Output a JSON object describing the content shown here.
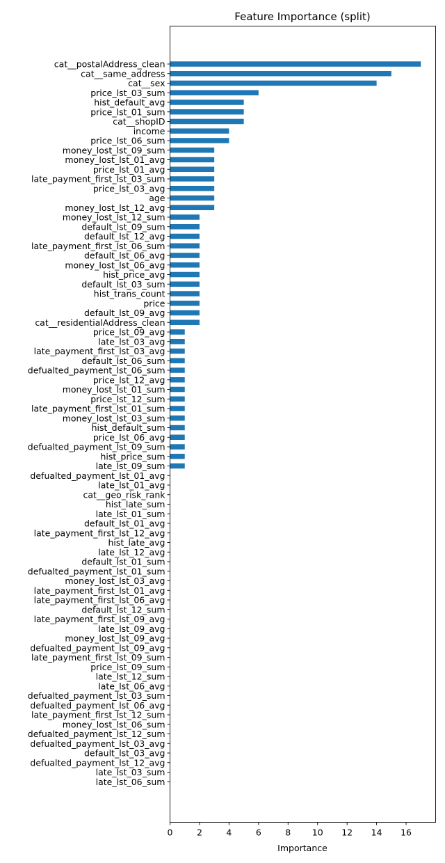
{
  "chart_data": {
    "type": "bar",
    "orientation": "horizontal",
    "title": "Feature Importance (split)",
    "xlabel": "Importance",
    "ylabel": "",
    "xlim": [
      0,
      18
    ],
    "xticks": [
      0,
      2,
      4,
      6,
      8,
      10,
      12,
      14,
      16
    ],
    "grid": false,
    "legend": false,
    "bar_color": "#1f77b4",
    "categories": [
      "cat__postalAddress_clean",
      "cat__same_address",
      "cat__sex",
      "price_lst_03_sum",
      "hist_default_avg",
      "price_lst_01_sum",
      "cat__shopID",
      "income",
      "price_lst_06_sum",
      "money_lost_lst_09_sum",
      "money_lost_lst_01_avg",
      "price_lst_01_avg",
      "late_payment_first_lst_03_sum",
      "price_lst_03_avg",
      "age",
      "money_lost_lst_12_avg",
      "money_lost_lst_12_sum",
      "default_lst_09_sum",
      "default_lst_12_avg",
      "late_payment_first_lst_06_sum",
      "default_lst_06_avg",
      "money_lost_lst_06_avg",
      "hist_price_avg",
      "default_lst_03_sum",
      "hist_trans_count",
      "price",
      "default_lst_09_avg",
      "cat__residentialAddress_clean",
      "price_lst_09_avg",
      "late_lst_03_avg",
      "late_payment_first_lst_03_avg",
      "default_lst_06_sum",
      "defualted_payment_lst_06_sum",
      "price_lst_12_avg",
      "money_lost_lst_01_sum",
      "price_lst_12_sum",
      "late_payment_first_lst_01_sum",
      "money_lost_lst_03_sum",
      "hist_default_sum",
      "price_lst_06_avg",
      "defualted_payment_lst_09_sum",
      "hist_price_sum",
      "late_lst_09_sum",
      "defualted_payment_lst_01_avg",
      "late_lst_01_avg",
      "cat__geo_risk_rank",
      "hist_late_sum",
      "late_lst_01_sum",
      "default_lst_01_avg",
      "late_payment_first_lst_12_avg",
      "hist_late_avg",
      "late_lst_12_avg",
      "default_lst_01_sum",
      "defualted_payment_lst_01_sum",
      "money_lost_lst_03_avg",
      "late_payment_first_lst_01_avg",
      "late_payment_first_lst_06_avg",
      "default_lst_12_sum",
      "late_payment_first_lst_09_avg",
      "late_lst_09_avg",
      "money_lost_lst_09_avg",
      "defualted_payment_lst_09_avg",
      "late_payment_first_lst_09_sum",
      "price_lst_09_sum",
      "late_lst_12_sum",
      "late_lst_06_avg",
      "defualted_payment_lst_03_sum",
      "defualted_payment_lst_06_avg",
      "late_payment_first_lst_12_sum",
      "money_lost_lst_06_sum",
      "defualted_payment_lst_12_sum",
      "defualted_payment_lst_03_avg",
      "default_lst_03_avg",
      "defualted_payment_lst_12_avg",
      "late_lst_03_sum",
      "late_lst_06_sum"
    ],
    "values": [
      17,
      15,
      14,
      6,
      5,
      5,
      5,
      4,
      4,
      3,
      3,
      3,
      3,
      3,
      3,
      3,
      2,
      2,
      2,
      2,
      2,
      2,
      2,
      2,
      2,
      2,
      2,
      2,
      1,
      1,
      1,
      1,
      1,
      1,
      1,
      1,
      1,
      1,
      1,
      1,
      1,
      1,
      1,
      0,
      0,
      0,
      0,
      0,
      0,
      0,
      0,
      0,
      0,
      0,
      0,
      0,
      0,
      0,
      0,
      0,
      0,
      0,
      0,
      0,
      0,
      0,
      0,
      0,
      0,
      0,
      0,
      0,
      0,
      0,
      0,
      0
    ]
  }
}
